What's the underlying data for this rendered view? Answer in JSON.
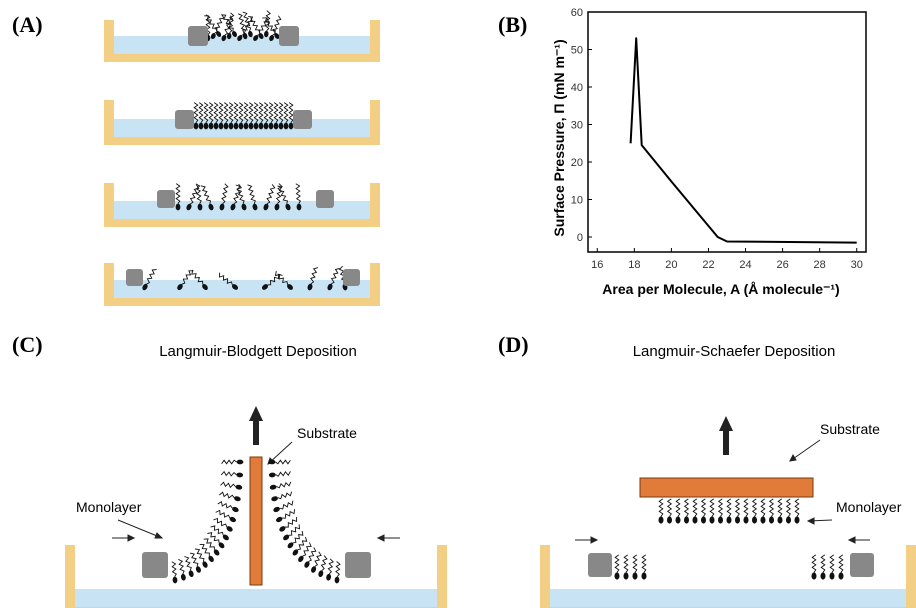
{
  "panel_labels": [
    "(A)",
    "(B)",
    "(C)",
    "(D)"
  ],
  "panel_c": {
    "title": "Langmuir-Blodgett Deposition",
    "substrate_label": "Substrate",
    "monolayer_label": "Monolayer"
  },
  "panel_d": {
    "title": "Langmuir-Schaefer Deposition",
    "substrate_label": "Substrate",
    "monolayer_label": "Monolayer"
  },
  "chart_data": {
    "type": "line",
    "x_label": "Area per Molecule, A (Å molecule⁻¹)",
    "y_label": "Surface Pressure, Π (mN m⁻¹)",
    "x": [
      17.8,
      18.1,
      18.4,
      20,
      22.5,
      23,
      30
    ],
    "values": [
      25,
      53,
      24.5,
      14.8,
      0,
      -1.2,
      -1.5
    ],
    "color": "#000000",
    "xlim": [
      15.5,
      30.5
    ],
    "ylim": [
      -4,
      60
    ],
    "xticks": [
      16,
      18,
      20,
      22,
      24,
      26,
      28,
      30
    ],
    "yticks": [
      0,
      10,
      20,
      30,
      40,
      50,
      60
    ]
  }
}
